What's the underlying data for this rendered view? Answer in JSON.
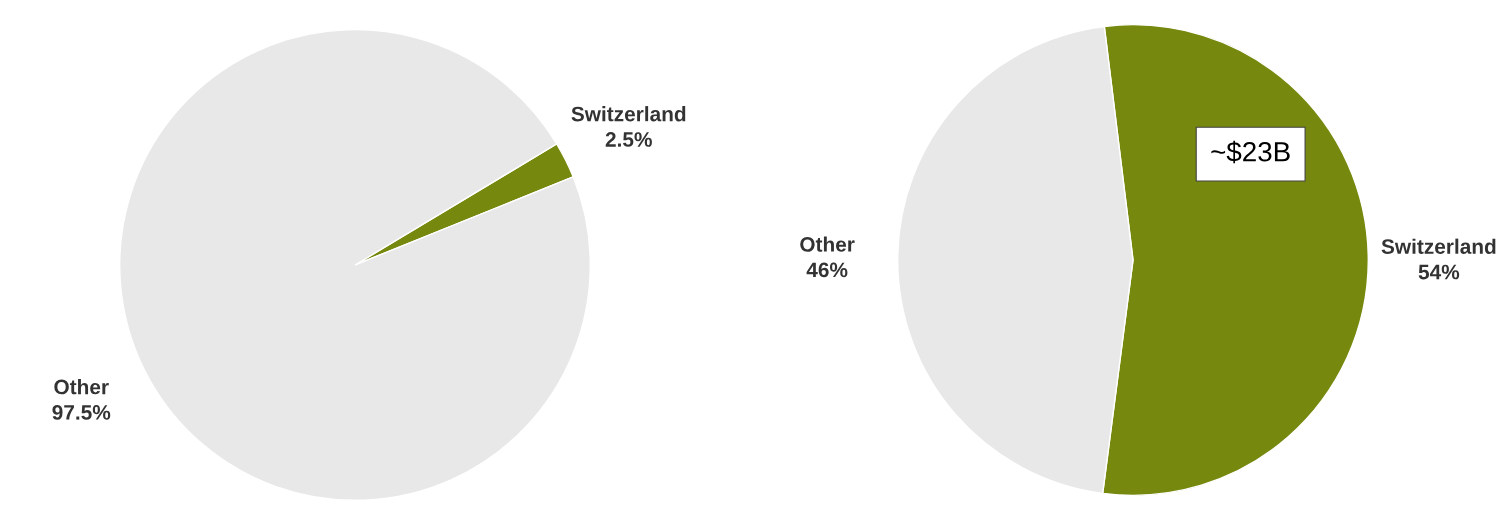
{
  "chart_data": [
    {
      "type": "pie",
      "categories": [
        "Switzerland",
        "Other"
      ],
      "values": [
        2.5,
        97.5
      ],
      "colors": [
        "#76890e",
        "#e8e8e8"
      ],
      "value_labels": [
        "2.5%",
        "97.5%"
      ]
    },
    {
      "type": "pie",
      "categories": [
        "Switzerland",
        "Other"
      ],
      "values": [
        54,
        46
      ],
      "colors": [
        "#76890e",
        "#e8e8e8"
      ],
      "value_labels": [
        "54%",
        "46%"
      ],
      "annotations": [
        "~$23B"
      ]
    }
  ]
}
